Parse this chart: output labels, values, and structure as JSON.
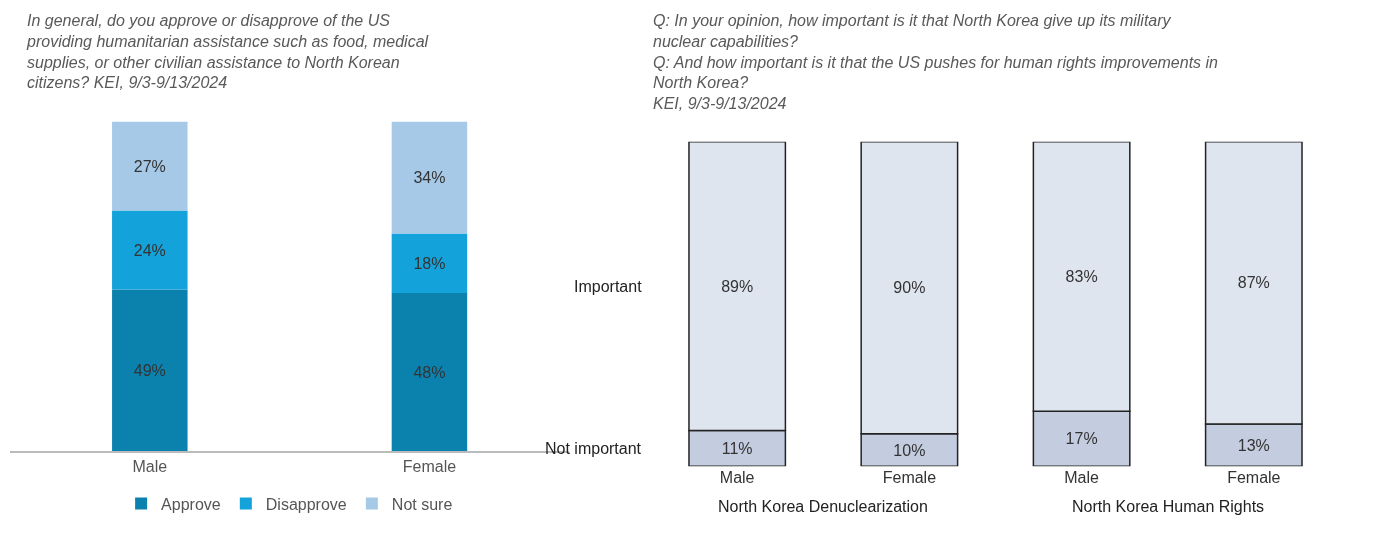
{
  "chart_data": [
    {
      "type": "bar",
      "title": "In general, do you approve or disapprove of the US providing humanitarian assistance such as food, medical supplies, or other civilian assistance to North Korean citizens? KEI, 9/3-9/13/2024",
      "categories": [
        "Male",
        "Female"
      ],
      "stacked": true,
      "legend": "bottom",
      "series": [
        {
          "name": "Approve",
          "color": "#0b82ae",
          "values": [
            49,
            48
          ],
          "value_labels": [
            "49%",
            "48%"
          ]
        },
        {
          "name": "Disapprove",
          "color": "#13a2d9",
          "values": [
            24,
            18
          ],
          "value_labels": [
            "24%",
            "18%"
          ]
        },
        {
          "name": "Not sure",
          "color": "#a6c9e8",
          "values": [
            27,
            34
          ],
          "value_labels": [
            "27%",
            "34%"
          ]
        }
      ]
    },
    {
      "type": "bar",
      "title": "Q: In your opinion, how important is it that North Korea give up its military nuclear capabilities?\nQ: And how important is it that the US pushes for human rights improvements in North Korea?\nKEI, 9/3-9/13/2024",
      "categories": [
        "Male",
        "Female",
        "Male",
        "Female"
      ],
      "stacked": true,
      "legend": false,
      "annotations": [
        "North Korea Denuclearization",
        "North Korea Human Rights"
      ],
      "series": [
        {
          "name": "Not important",
          "color": "#c4cce0",
          "values": [
            11,
            10,
            17,
            13
          ],
          "value_labels": [
            "11%",
            "10%",
            "17%",
            "13%"
          ]
        },
        {
          "name": "Important",
          "color": "#dfe5ef",
          "values": [
            89,
            90,
            83,
            87
          ],
          "value_labels": [
            "89%",
            "90%",
            "83%",
            "87%"
          ]
        }
      ]
    }
  ]
}
